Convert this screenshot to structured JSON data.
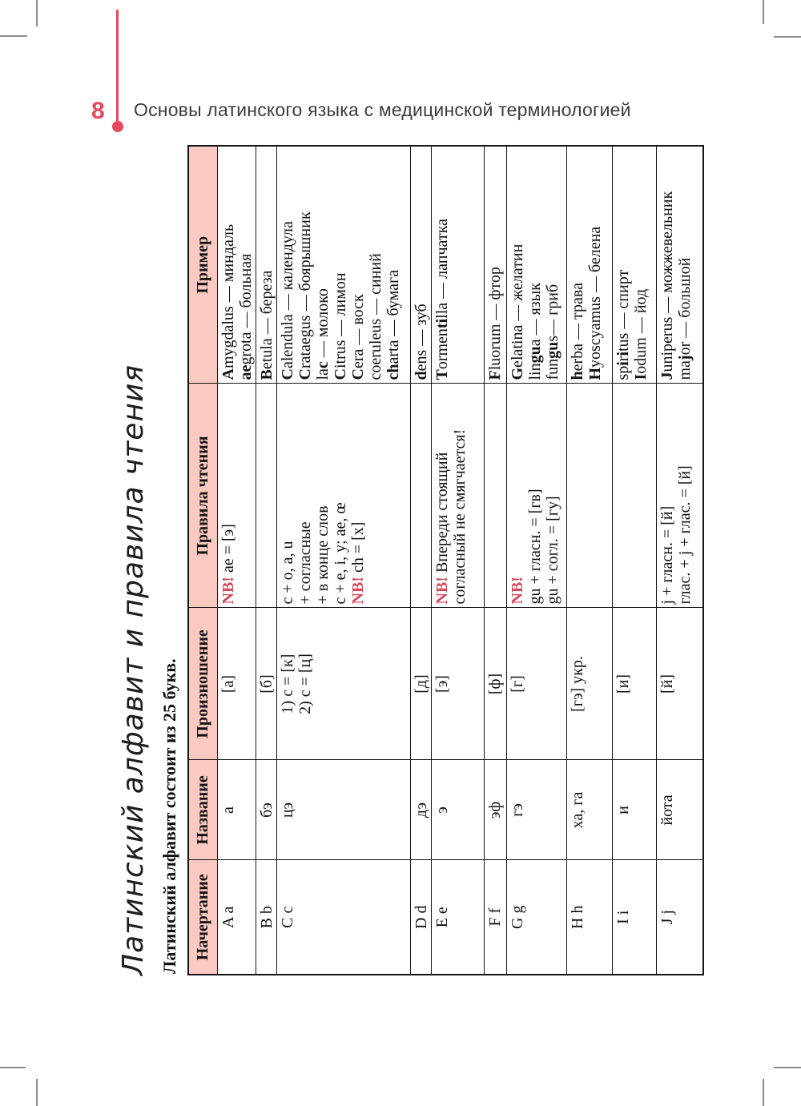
{
  "page": {
    "number": "8",
    "header": "Основы латинского языка с медицинской терминологией"
  },
  "title": "Латинский алфавит и правила чтения",
  "subtitle": "Латинский алфавит состоит из 25 букв.",
  "colors": {
    "header_pink": "#f9c9c2",
    "accent_red": "#e8495f",
    "nb_red": "#d5495a"
  },
  "table": {
    "headers": [
      "Начертание",
      "Название",
      "Произношение",
      "Правила чтения",
      "Пример"
    ],
    "rows": [
      {
        "letter": "A a",
        "name": "а",
        "pronunciation": [
          "[а]"
        ],
        "rules": [
          "NB! ae = [э]"
        ],
        "examples": [
          "**A**mygdalus — миндаль",
          "**ae**grota — больная"
        ]
      },
      {
        "letter": "B b",
        "name": "бэ",
        "pronunciation": [
          "[б]"
        ],
        "rules": [],
        "examples": [
          "**B**etula — береза"
        ]
      },
      {
        "letter": "C c",
        "name": "цэ",
        "pronunciation": [
          "1) c = [к]",
          "2) c = [ц]"
        ],
        "rules": [
          "c + o, a, u",
          "+ согласные",
          "+ в конце слов",
          "c + e, i, y; ae, œ",
          "NB! ch = [х]"
        ],
        "examples": [
          "**C**alendula — календула",
          "**C**rataegus — боярышник",
          "la**c** — молоко",
          "**C**itrus — лимон",
          "**C**era — воск",
          "coeruleus — синий",
          "**ch**arta — бумага"
        ]
      },
      {
        "letter": "D d",
        "name": "дэ",
        "pronunciation": [
          "[д]"
        ],
        "rules": [],
        "examples": [
          "**d**ens — зуб"
        ]
      },
      {
        "letter": "E e",
        "name": "э",
        "pronunciation": [
          "[э]"
        ],
        "rules": [
          "NB! Впереди стоящий",
          "согласный не смягчается!"
        ],
        "examples": [
          "**T**ormen**ti**lla — лапчатка"
        ]
      },
      {
        "letter": "F f",
        "name": "эф",
        "pronunciation": [
          "[ф]"
        ],
        "rules": [],
        "examples": [
          "**F**luorum — фтор"
        ]
      },
      {
        "letter": "G g",
        "name": "гэ",
        "pronunciation": [
          "[г]"
        ],
        "rules": [
          "NB!",
          "gu + гласн. = [гв]",
          "gu + согл. = [гу]"
        ],
        "examples": [
          "**G**elatina — желатин",
          "lin**gu**a — язык",
          "fun**gu**s— гриб"
        ]
      },
      {
        "letter": "H h",
        "name": "ха, га",
        "pronunciation": [
          "[гэ] укр."
        ],
        "rules": [],
        "examples": [
          "**h**erba — трава",
          "**H**yoscyamus — белена"
        ]
      },
      {
        "letter": "I i",
        "name": "и",
        "pronunciation": [
          "[и]"
        ],
        "rules": [],
        "examples": [
          "sp**i**r**i**tus — спирт",
          "**I**odum — йод"
        ]
      },
      {
        "letter": "J j",
        "name": "йота",
        "pronunciation": [
          "[й]"
        ],
        "rules": [
          "j + гласн. = [й]",
          "глас. + j + глас. = [й]"
        ],
        "examples": [
          "**J**uniperus — можжевельник",
          "ma**j**or — большой"
        ]
      }
    ]
  }
}
